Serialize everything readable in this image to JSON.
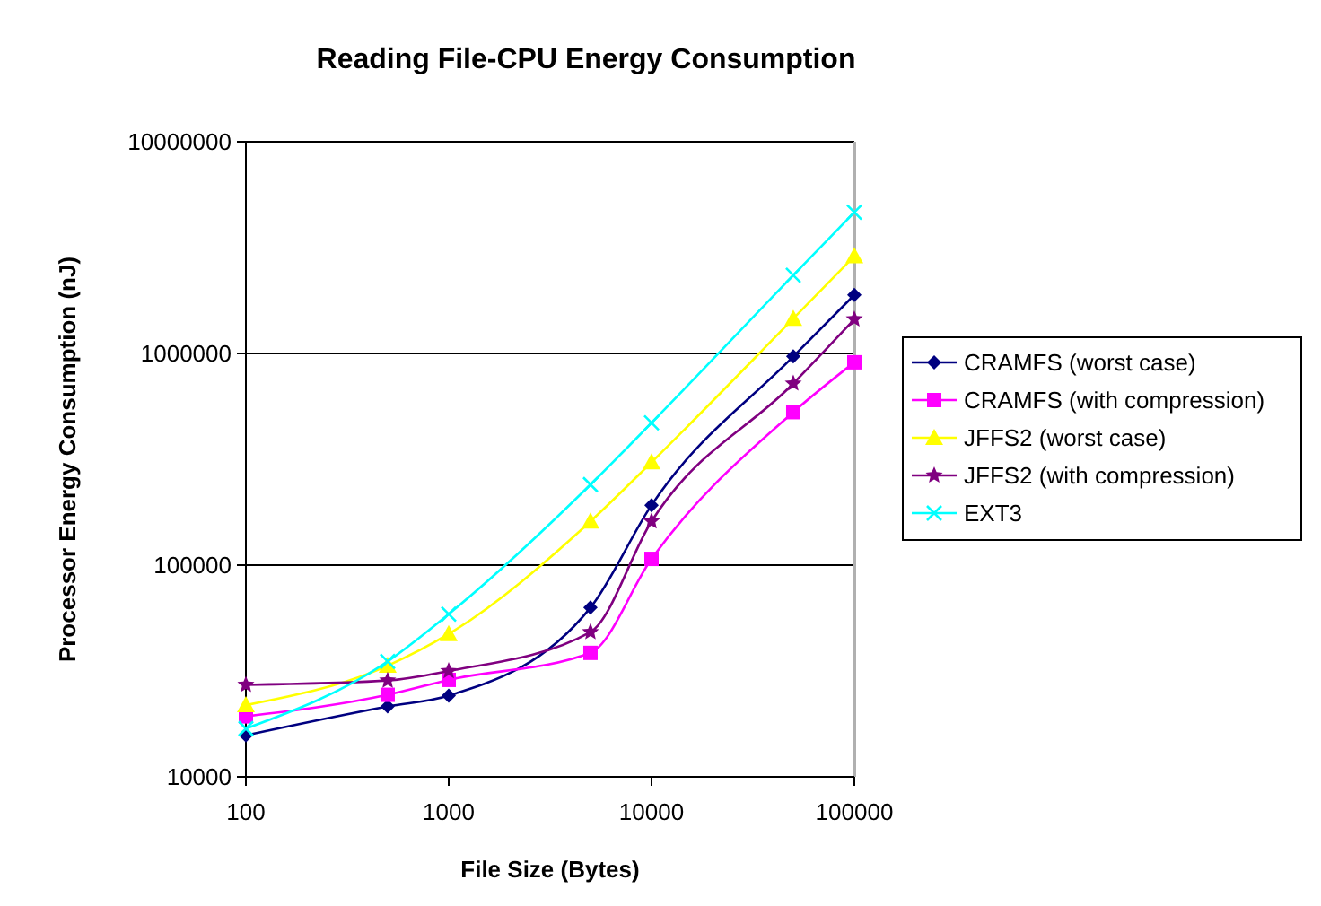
{
  "chart_data": {
    "type": "line",
    "title": "Reading File-CPU Energy Consumption",
    "xlabel": "File Size (Bytes)",
    "ylabel": "Processor Energy Consumption (nJ)",
    "log": "xy",
    "grid": "y",
    "legend": "right",
    "x": [
      100,
      500,
      1000,
      5000,
      10000,
      50000,
      100000
    ],
    "xlim": [
      100,
      100000
    ],
    "xticks": [
      100,
      1000,
      10000,
      100000
    ],
    "ylim": [
      10000,
      10000000
    ],
    "yticks": [
      10000,
      100000,
      1000000,
      10000000
    ],
    "series": [
      {
        "name": "CRAMFS (worst case)",
        "color": "#000080",
        "marker": "diamond",
        "values": [
          15700,
          21500,
          24200,
          63000,
          192000,
          968000,
          1890000
        ]
      },
      {
        "name": "CRAMFS (with compression)",
        "color": "#ff00ff",
        "marker": "square",
        "values": [
          19300,
          24400,
          28700,
          38500,
          107000,
          528000,
          908000
        ]
      },
      {
        "name": "JFFS2 (worst case)",
        "color": "#ffff00",
        "marker": "triangle",
        "values": [
          21800,
          33500,
          47300,
          161000,
          306000,
          1460000,
          2880000
        ]
      },
      {
        "name": "JFFS2 (with compression)",
        "color": "#800080",
        "marker": "star",
        "values": [
          27200,
          28500,
          31600,
          48300,
          161000,
          721000,
          1450000
        ]
      },
      {
        "name": "EXT3",
        "color": "#00ffff",
        "marker": "cross",
        "values": [
          16900,
          35100,
          58700,
          240000,
          470000,
          2340000,
          4640000
        ]
      }
    ]
  }
}
